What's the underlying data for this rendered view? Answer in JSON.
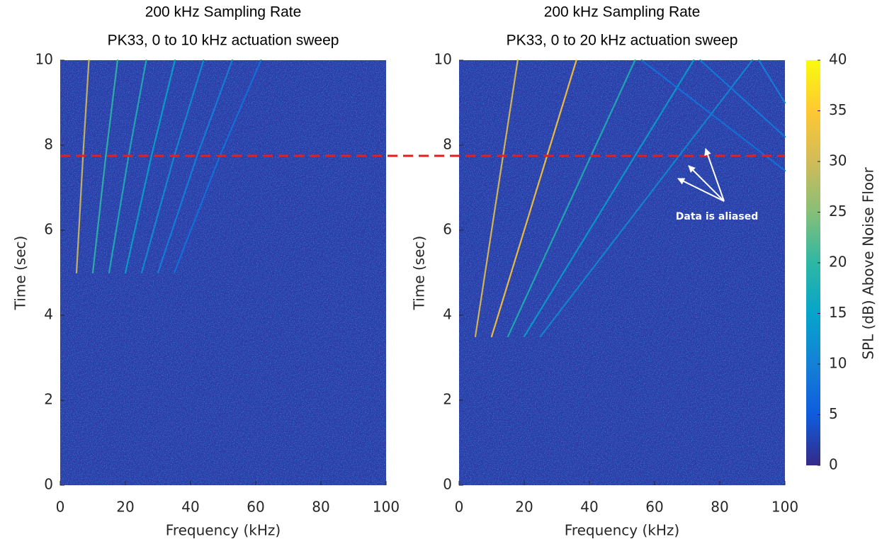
{
  "chart_data": [
    {
      "type": "spectrogram",
      "title": [
        "200 kHz Sampling Rate",
        "PK33, 0 to 10 kHz actuation sweep"
      ],
      "xlabel": "Frequency (kHz)",
      "ylabel": "Time (sec)",
      "xlim": [
        0,
        100
      ],
      "ylim": [
        0,
        10
      ],
      "xticks": [
        0,
        20,
        40,
        60,
        80,
        100
      ],
      "yticks": [
        0,
        2,
        4,
        6,
        8,
        10
      ],
      "ridges": [
        {
          "x": [
            5,
            7,
            8.8
          ],
          "y": [
            5,
            7.75,
            10
          ],
          "level": 30
        },
        {
          "x": [
            10,
            14,
            17.6
          ],
          "y": [
            5,
            7.75,
            10
          ],
          "level": 20
        },
        {
          "x": [
            15,
            21,
            26.4
          ],
          "y": [
            5,
            7.75,
            10
          ],
          "level": 18
        },
        {
          "x": [
            20,
            28,
            35.2
          ],
          "y": [
            5,
            7.75,
            10
          ],
          "level": 15
        },
        {
          "x": [
            25,
            35,
            44
          ],
          "y": [
            5,
            7.75,
            10
          ],
          "level": 12
        },
        {
          "x": [
            30,
            42,
            52.8
          ],
          "y": [
            5,
            7.75,
            10
          ],
          "level": 10
        },
        {
          "x": [
            35,
            49,
            61.6
          ],
          "y": [
            5,
            7.75,
            10
          ],
          "level": 8
        }
      ],
      "reference_line": {
        "y": 7.75,
        "color": "#e41f1c"
      }
    },
    {
      "type": "spectrogram",
      "title": [
        "200 kHz Sampling Rate",
        "PK33, 0 to 20 kHz actuation sweep"
      ],
      "xlabel": "Frequency (kHz)",
      "ylabel": "Time (sec)",
      "xlim": [
        0,
        100
      ],
      "ylim": [
        0,
        10
      ],
      "xticks": [
        0,
        20,
        40,
        60,
        80,
        100
      ],
      "yticks": [
        0,
        2,
        4,
        6,
        8,
        10
      ],
      "ridges": [
        {
          "x": [
            5,
            10,
            13.5,
            18
          ],
          "y": [
            3.5,
            6,
            7.75,
            10
          ],
          "level": 32
        },
        {
          "x": [
            10,
            20,
            27,
            36
          ],
          "y": [
            3.5,
            6,
            7.75,
            10
          ],
          "level": 35
        },
        {
          "x": [
            15,
            30,
            40.5,
            54
          ],
          "y": [
            3.5,
            6,
            7.75,
            10
          ],
          "level": 18
        },
        {
          "x": [
            20,
            40,
            54,
            72
          ],
          "y": [
            3.5,
            6,
            7.75,
            10
          ],
          "level": 14
        },
        {
          "x": [
            25,
            50,
            67.5,
            90
          ],
          "y": [
            3.5,
            6,
            7.75,
            10
          ],
          "level": 11
        },
        {
          "x": [
            100,
            92
          ],
          "y": [
            9,
            10
          ],
          "level": 10
        },
        {
          "x": [
            100,
            74
          ],
          "y": [
            8.2,
            10
          ],
          "level": 9
        },
        {
          "x": [
            100,
            56
          ],
          "y": [
            7.4,
            10
          ],
          "level": 8
        }
      ],
      "annotation": "Data is aliased"
    },
    {
      "type": "colorbar",
      "label": "SPL (dB) Above Noise Floor",
      "clim": [
        0,
        40
      ],
      "ticks": [
        0,
        5,
        10,
        15,
        20,
        25,
        30,
        35,
        40
      ]
    }
  ]
}
